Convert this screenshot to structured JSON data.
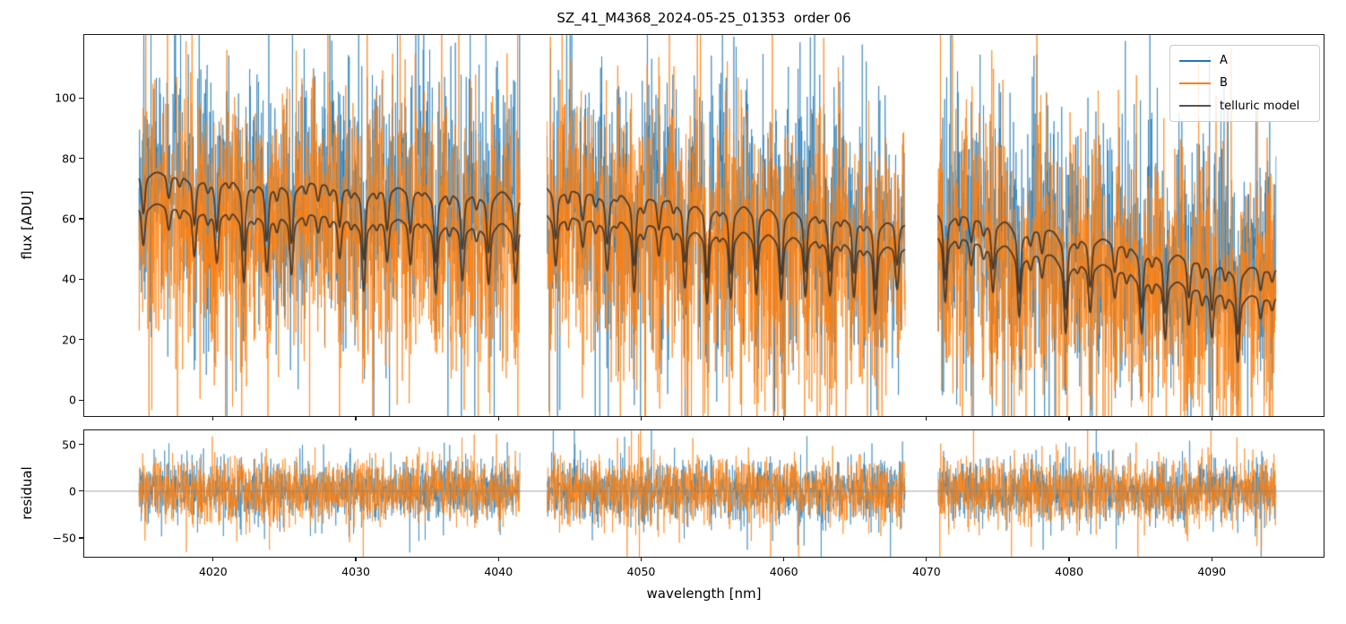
{
  "chart_data": {
    "type": "line",
    "title": "SZ_41_M4368_2024-05-25_01353  order 06",
    "xlabel": "wavelength [nm]",
    "xlim": [
      4010.9,
      4097.9
    ],
    "xticks": [
      4020,
      4030,
      4040,
      4050,
      4060,
      4070,
      4080,
      4090
    ],
    "panels": [
      {
        "name": "flux",
        "ylabel": "flux [ADU]",
        "ylim": [
          -5.6,
          121.2
        ],
        "yticks": [
          0,
          20,
          40,
          60,
          80,
          100
        ],
        "grid": false
      },
      {
        "name": "residual",
        "ylabel": "residual",
        "ylim": [
          -71,
          66
        ],
        "yticks": [
          -50,
          0,
          50
        ],
        "zero_line": true,
        "zero_line_color": "#808080",
        "grid": false
      }
    ],
    "series": [
      {
        "name": "A",
        "color": "#1f77b4",
        "role": "spectrum"
      },
      {
        "name": "B",
        "color": "#ff7f0e",
        "role": "spectrum"
      },
      {
        "name": "telluric model",
        "color": "#555555",
        "plot_color": "rgba(52,46,40,0.85)",
        "role": "model"
      }
    ],
    "legend": {
      "position": "upper right",
      "entries": [
        "A",
        "B",
        "telluric model"
      ]
    },
    "segments": [
      {
        "x_start": 4014.8,
        "x_end": 4041.5,
        "model_A": [
          77.0,
          70.5
        ],
        "model_B": [
          66.5,
          60.0
        ]
      },
      {
        "x_start": 4043.4,
        "x_end": 4068.5,
        "model_A": [
          72.5,
          61.5
        ],
        "model_B": [
          63.5,
          53.5
        ]
      },
      {
        "x_start": 4070.8,
        "x_end": 4094.5,
        "model_A": [
          65.0,
          44.5
        ],
        "model_B": [
          57.5,
          35.0
        ]
      }
    ],
    "telluric": {
      "dip_period_nm": 1.7,
      "main_dip_depth": [
        14,
        26
      ],
      "alt_dip_depth": [
        7,
        12
      ],
      "sub_dip_depth": 4,
      "dip_sigma_nm": 0.11,
      "dip_broad_sigma_nm": 0.5
    },
    "noise": {
      "flux_sigma": 21,
      "residual_sigma": 16,
      "sample_step_nm": 0.02,
      "spike_probability": 0.05,
      "spike_factor": 2.1,
      "seed": 7
    }
  }
}
